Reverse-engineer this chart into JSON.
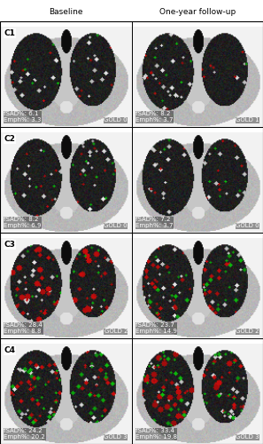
{
  "title_left": "Baseline",
  "title_right": "One-year follow-up",
  "rows": [
    {
      "cluster": "C1",
      "left": {
        "fsad": "6.1",
        "emph": "3.3",
        "gold": "GOLD 0"
      },
      "right": {
        "fsad": "8.2",
        "emph": "3.7",
        "gold": "GOLD 1"
      }
    },
    {
      "cluster": "C2",
      "left": {
        "fsad": "8.2",
        "emph": "6.9",
        "gold": "GOLD 0"
      },
      "right": {
        "fsad": "7.2",
        "emph": "3.7",
        "gold": "GOLD 0"
      }
    },
    {
      "cluster": "C3",
      "left": {
        "fsad": "28.4",
        "emph": "8.8",
        "gold": "GOLD 2"
      },
      "right": {
        "fsad": "23.7",
        "emph": "14.9",
        "gold": "GOLD 2"
      }
    },
    {
      "cluster": "C4",
      "left": {
        "fsad": "24.2",
        "emph": "20.2",
        "gold": "GOLD 3"
      },
      "right": {
        "fsad": "33.4",
        "emph": "19.8",
        "gold": "GOLD 3"
      }
    }
  ],
  "header_fontsize": 6.5,
  "cluster_fontsize": 6.5,
  "annotation_fontsize": 5.0,
  "gold_fontsize": 5.0,
  "figsize": [
    2.97,
    5.0
  ],
  "dpi": 100
}
